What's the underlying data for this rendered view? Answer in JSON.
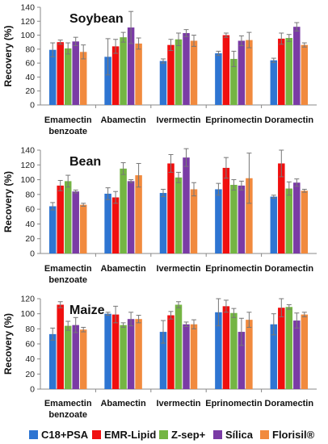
{
  "series_colors": [
    "#2E75D2",
    "#F00F0F",
    "#74B543",
    "#7A3BA5",
    "#F18A3E"
  ],
  "legend": [
    "C18+PSA",
    "EMR-Lipid",
    "Z-sep+",
    "Sílica",
    "Florisil®"
  ],
  "chart_data": [
    {
      "type": "bar",
      "title": "Soybean",
      "ylabel": "Recovery (%)",
      "ylim": [
        0,
        140
      ],
      "yticks": [
        "0",
        "20",
        "40",
        "60",
        "80",
        "100",
        "120",
        "140"
      ],
      "categories": [
        "Emamectin benzoate",
        "Abamectin",
        "Ivermectin",
        "Eprinomectin",
        "Doramectin"
      ],
      "series": [
        {
          "name": "C18+PSA",
          "values": [
            79,
            69,
            63,
            74,
            64
          ],
          "errors": [
            10,
            26,
            3,
            3,
            3
          ]
        },
        {
          "name": "EMR-Lipid",
          "values": [
            90,
            84,
            86,
            100,
            95
          ],
          "errors": [
            3,
            10,
            8,
            3,
            8
          ]
        },
        {
          "name": "Z-sep+",
          "values": [
            81,
            97,
            94,
            66,
            96
          ],
          "errors": [
            8,
            7,
            9,
            11,
            5
          ]
        },
        {
          "name": "Sílica",
          "values": [
            91,
            111,
            103,
            92,
            112
          ],
          "errors": [
            6,
            23,
            5,
            7,
            6
          ]
        },
        {
          "name": "Florisil®",
          "values": [
            76,
            88,
            92,
            93,
            86
          ],
          "errors": [
            10,
            8,
            8,
            11,
            3
          ]
        }
      ]
    },
    {
      "type": "bar",
      "title": "Bean",
      "ylabel": "Recovery (%)",
      "ylim": [
        0,
        140
      ],
      "yticks": [
        "0",
        "20",
        "40",
        "60",
        "80",
        "100",
        "120",
        "140"
      ],
      "categories": [
        "Emamectin benzoate",
        "Abamectin",
        "Ivermectin",
        "Eprinomectin",
        "Doramectin"
      ],
      "series": [
        {
          "name": "C18+PSA",
          "values": [
            64,
            81,
            82,
            87,
            77
          ],
          "errors": [
            5,
            8,
            5,
            8,
            2
          ]
        },
        {
          "name": "EMR-Lipid",
          "values": [
            92,
            76,
            122,
            116,
            122
          ],
          "errors": [
            7,
            8,
            12,
            14,
            18
          ]
        },
        {
          "name": "Z-sep+",
          "values": [
            98,
            115,
            103,
            93,
            88
          ],
          "errors": [
            8,
            8,
            7,
            7,
            9
          ]
        },
        {
          "name": "Sílica",
          "values": [
            84,
            98,
            130,
            92,
            96
          ],
          "errors": [
            2,
            2,
            12,
            6,
            5
          ]
        },
        {
          "name": "Florisil®",
          "values": [
            66,
            106,
            87,
            102,
            85
          ],
          "errors": [
            2,
            16,
            9,
            34,
            2
          ]
        }
      ]
    },
    {
      "type": "bar",
      "title": "Maize",
      "ylabel": "Recovery (%)",
      "ylim": [
        0,
        120
      ],
      "yticks": [
        "0",
        "20",
        "40",
        "60",
        "80",
        "100",
        "120"
      ],
      "categories": [
        "Emamectin benzoate",
        "Abamectin",
        "Ivermectin",
        "Eprinomectin",
        "Doramectin"
      ],
      "series": [
        {
          "name": "C18+PSA",
          "values": [
            73,
            100,
            76,
            102,
            86
          ],
          "errors": [
            8,
            2,
            15,
            18,
            14
          ]
        },
        {
          "name": "EMR-Lipid",
          "values": [
            112,
            99,
            98,
            110,
            108
          ],
          "errors": [
            4,
            11,
            5,
            8,
            12
          ]
        },
        {
          "name": "Z-sep+",
          "values": [
            84,
            85,
            112,
            101,
            109
          ],
          "errors": [
            6,
            3,
            4,
            6,
            3
          ]
        },
        {
          "name": "Sílica",
          "values": [
            85,
            93,
            86,
            76,
            91
          ],
          "errors": [
            10,
            9,
            3,
            18,
            10
          ]
        },
        {
          "name": "Florisil®",
          "values": [
            79,
            93,
            86,
            92,
            99
          ],
          "errors": [
            3,
            5,
            6,
            10,
            3
          ]
        }
      ]
    }
  ]
}
